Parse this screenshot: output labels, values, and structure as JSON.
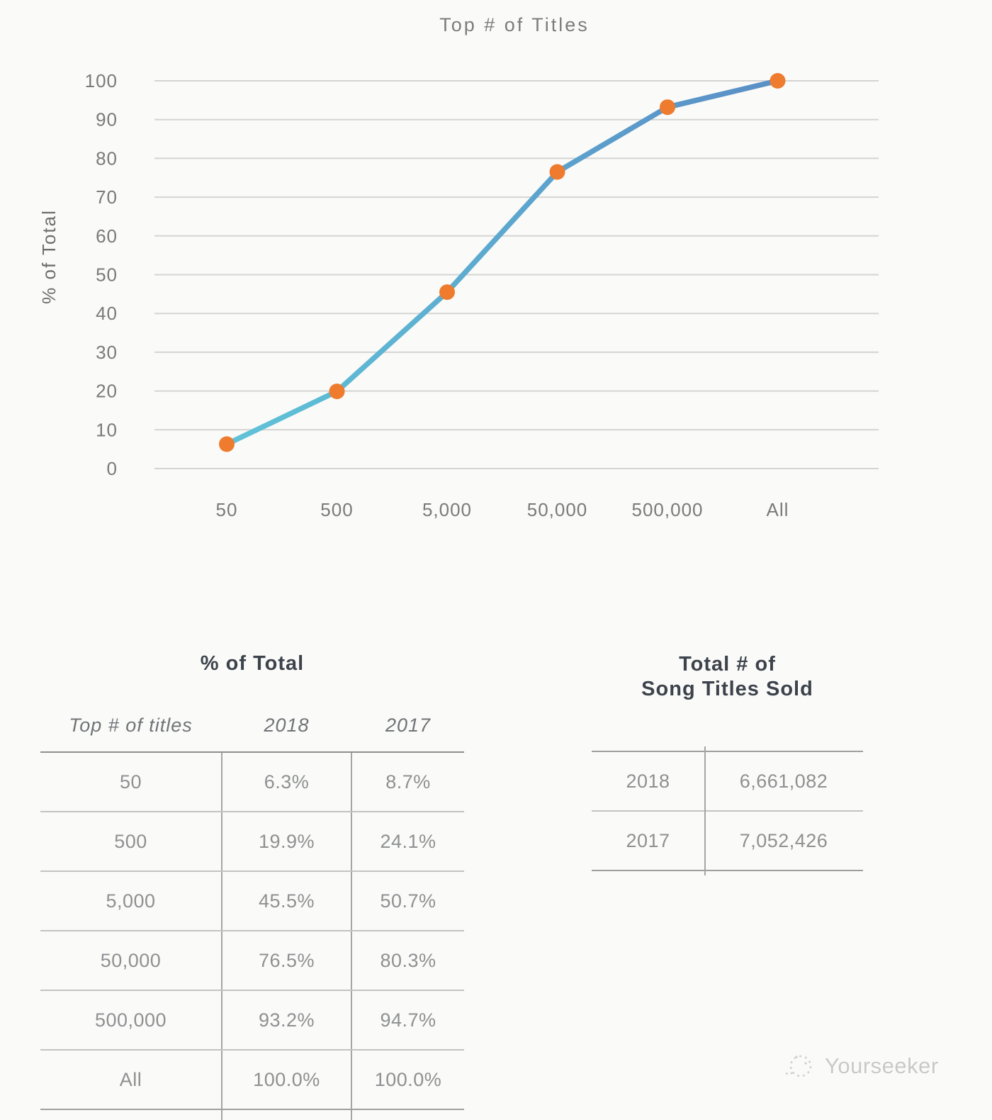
{
  "chart_data": {
    "type": "line",
    "title": "Top # of Titles",
    "ylabel": "% of Total",
    "categories": [
      "50",
      "500",
      "5,000",
      "50,000",
      "500,000",
      "All"
    ],
    "series": [
      {
        "name": "2018",
        "values": [
          6.3,
          19.9,
          45.5,
          76.5,
          93.2,
          100.0
        ]
      }
    ],
    "ylim": [
      0,
      100
    ],
    "y_ticks": [
      0,
      10,
      20,
      30,
      40,
      50,
      60,
      70,
      80,
      90,
      100
    ],
    "grid": true,
    "legend": "none",
    "line_gradient": [
      "#5fc3d8",
      "#5a8fc6"
    ],
    "marker_color": "#ee7b2e",
    "gridline_color": "#d4d4d4",
    "axis_text_color": "#7a7a7a",
    "axis_title_color": "#6e6e6e"
  },
  "tables": {
    "pct": {
      "title": "% of Total",
      "columns": [
        "Top # of titles",
        "2018",
        "2017"
      ],
      "rows": [
        {
          "titles": "50",
          "y2018": "6.3%",
          "y2017": "8.7%"
        },
        {
          "titles": "500",
          "y2018": "19.9%",
          "y2017": "24.1%"
        },
        {
          "titles": "5,000",
          "y2018": "45.5%",
          "y2017": "50.7%"
        },
        {
          "titles": "50,000",
          "y2018": "76.5%",
          "y2017": "80.3%"
        },
        {
          "titles": "500,000",
          "y2018": "93.2%",
          "y2017": "94.7%"
        },
        {
          "titles": "All",
          "y2018": "100.0%",
          "y2017": "100.0%"
        }
      ]
    },
    "totals": {
      "title_line1": "Total # of",
      "title_line2": "Song Titles Sold",
      "rows": [
        {
          "year": "2018",
          "value": "6,661,082"
        },
        {
          "year": "2017",
          "value": "7,052,426"
        }
      ]
    }
  },
  "watermark": {
    "text": "Yourseeker"
  }
}
